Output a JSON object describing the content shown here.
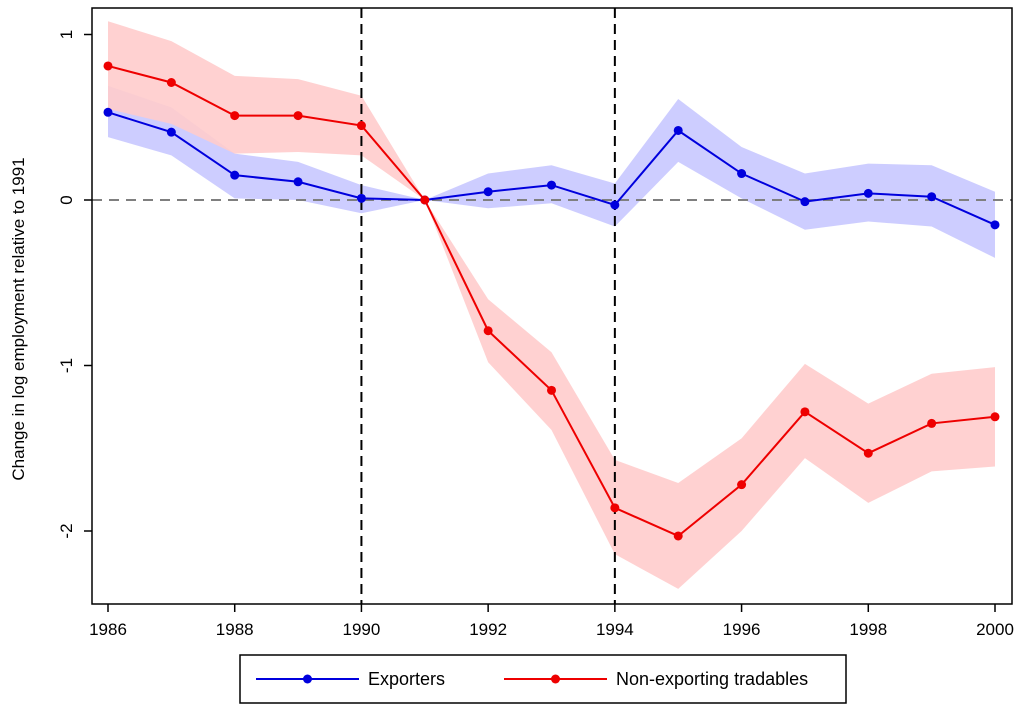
{
  "chart_data": {
    "type": "line",
    "ylabel": "Change in log employment relative to 1991",
    "xlabel": "",
    "x": [
      1986,
      1987,
      1988,
      1989,
      1990,
      1991,
      1992,
      1993,
      1994,
      1995,
      1996,
      1997,
      1998,
      1999,
      2000
    ],
    "xlim": [
      1986,
      2000
    ],
    "ylim": [
      -2.45,
      1.15
    ],
    "x_ticks": [
      1986,
      1988,
      1990,
      1992,
      1994,
      1996,
      1998,
      2000
    ],
    "y_ticks": [
      1,
      0,
      -1,
      -2
    ],
    "y_tick_labels": [
      "1",
      "0",
      "-1",
      "-2"
    ],
    "reference_lines": {
      "horizontal_y": 0,
      "vertical_x": [
        1990,
        1994
      ]
    },
    "legend_position": "bottom",
    "grid": false,
    "series": [
      {
        "name": "Exporters",
        "color": "#0000dd",
        "band_color": "#c8c8ff",
        "values": [
          0.53,
          0.41,
          0.15,
          0.11,
          0.01,
          0.0,
          0.05,
          0.09,
          -0.03,
          0.42,
          0.16,
          -0.01,
          0.04,
          0.02,
          -0.15
        ],
        "ci_upper": [
          0.69,
          0.56,
          0.28,
          0.23,
          0.09,
          0.0,
          0.16,
          0.21,
          0.1,
          0.61,
          0.32,
          0.16,
          0.22,
          0.21,
          0.05
        ],
        "ci_lower": [
          0.38,
          0.27,
          0.01,
          0.0,
          -0.08,
          0.0,
          -0.05,
          -0.02,
          -0.16,
          0.23,
          0.01,
          -0.18,
          -0.13,
          -0.16,
          -0.35
        ]
      },
      {
        "name": "Non-exporting tradables",
        "color": "#ee0000",
        "band_color": "#ffcccc",
        "values": [
          0.81,
          0.71,
          0.51,
          0.51,
          0.45,
          0.0,
          -0.79,
          -1.15,
          -1.86,
          -2.03,
          -1.72,
          -1.28,
          -1.53,
          -1.35,
          -1.31
        ],
        "ci_upper": [
          1.08,
          0.96,
          0.75,
          0.73,
          0.63,
          0.0,
          -0.6,
          -0.92,
          -1.57,
          -1.71,
          -1.44,
          -0.99,
          -1.23,
          -1.05,
          -1.01
        ],
        "ci_lower": [
          0.55,
          0.46,
          0.28,
          0.29,
          0.27,
          0.0,
          -0.98,
          -1.39,
          -2.14,
          -2.35,
          -2.0,
          -1.56,
          -1.83,
          -1.64,
          -1.61
        ]
      }
    ]
  }
}
